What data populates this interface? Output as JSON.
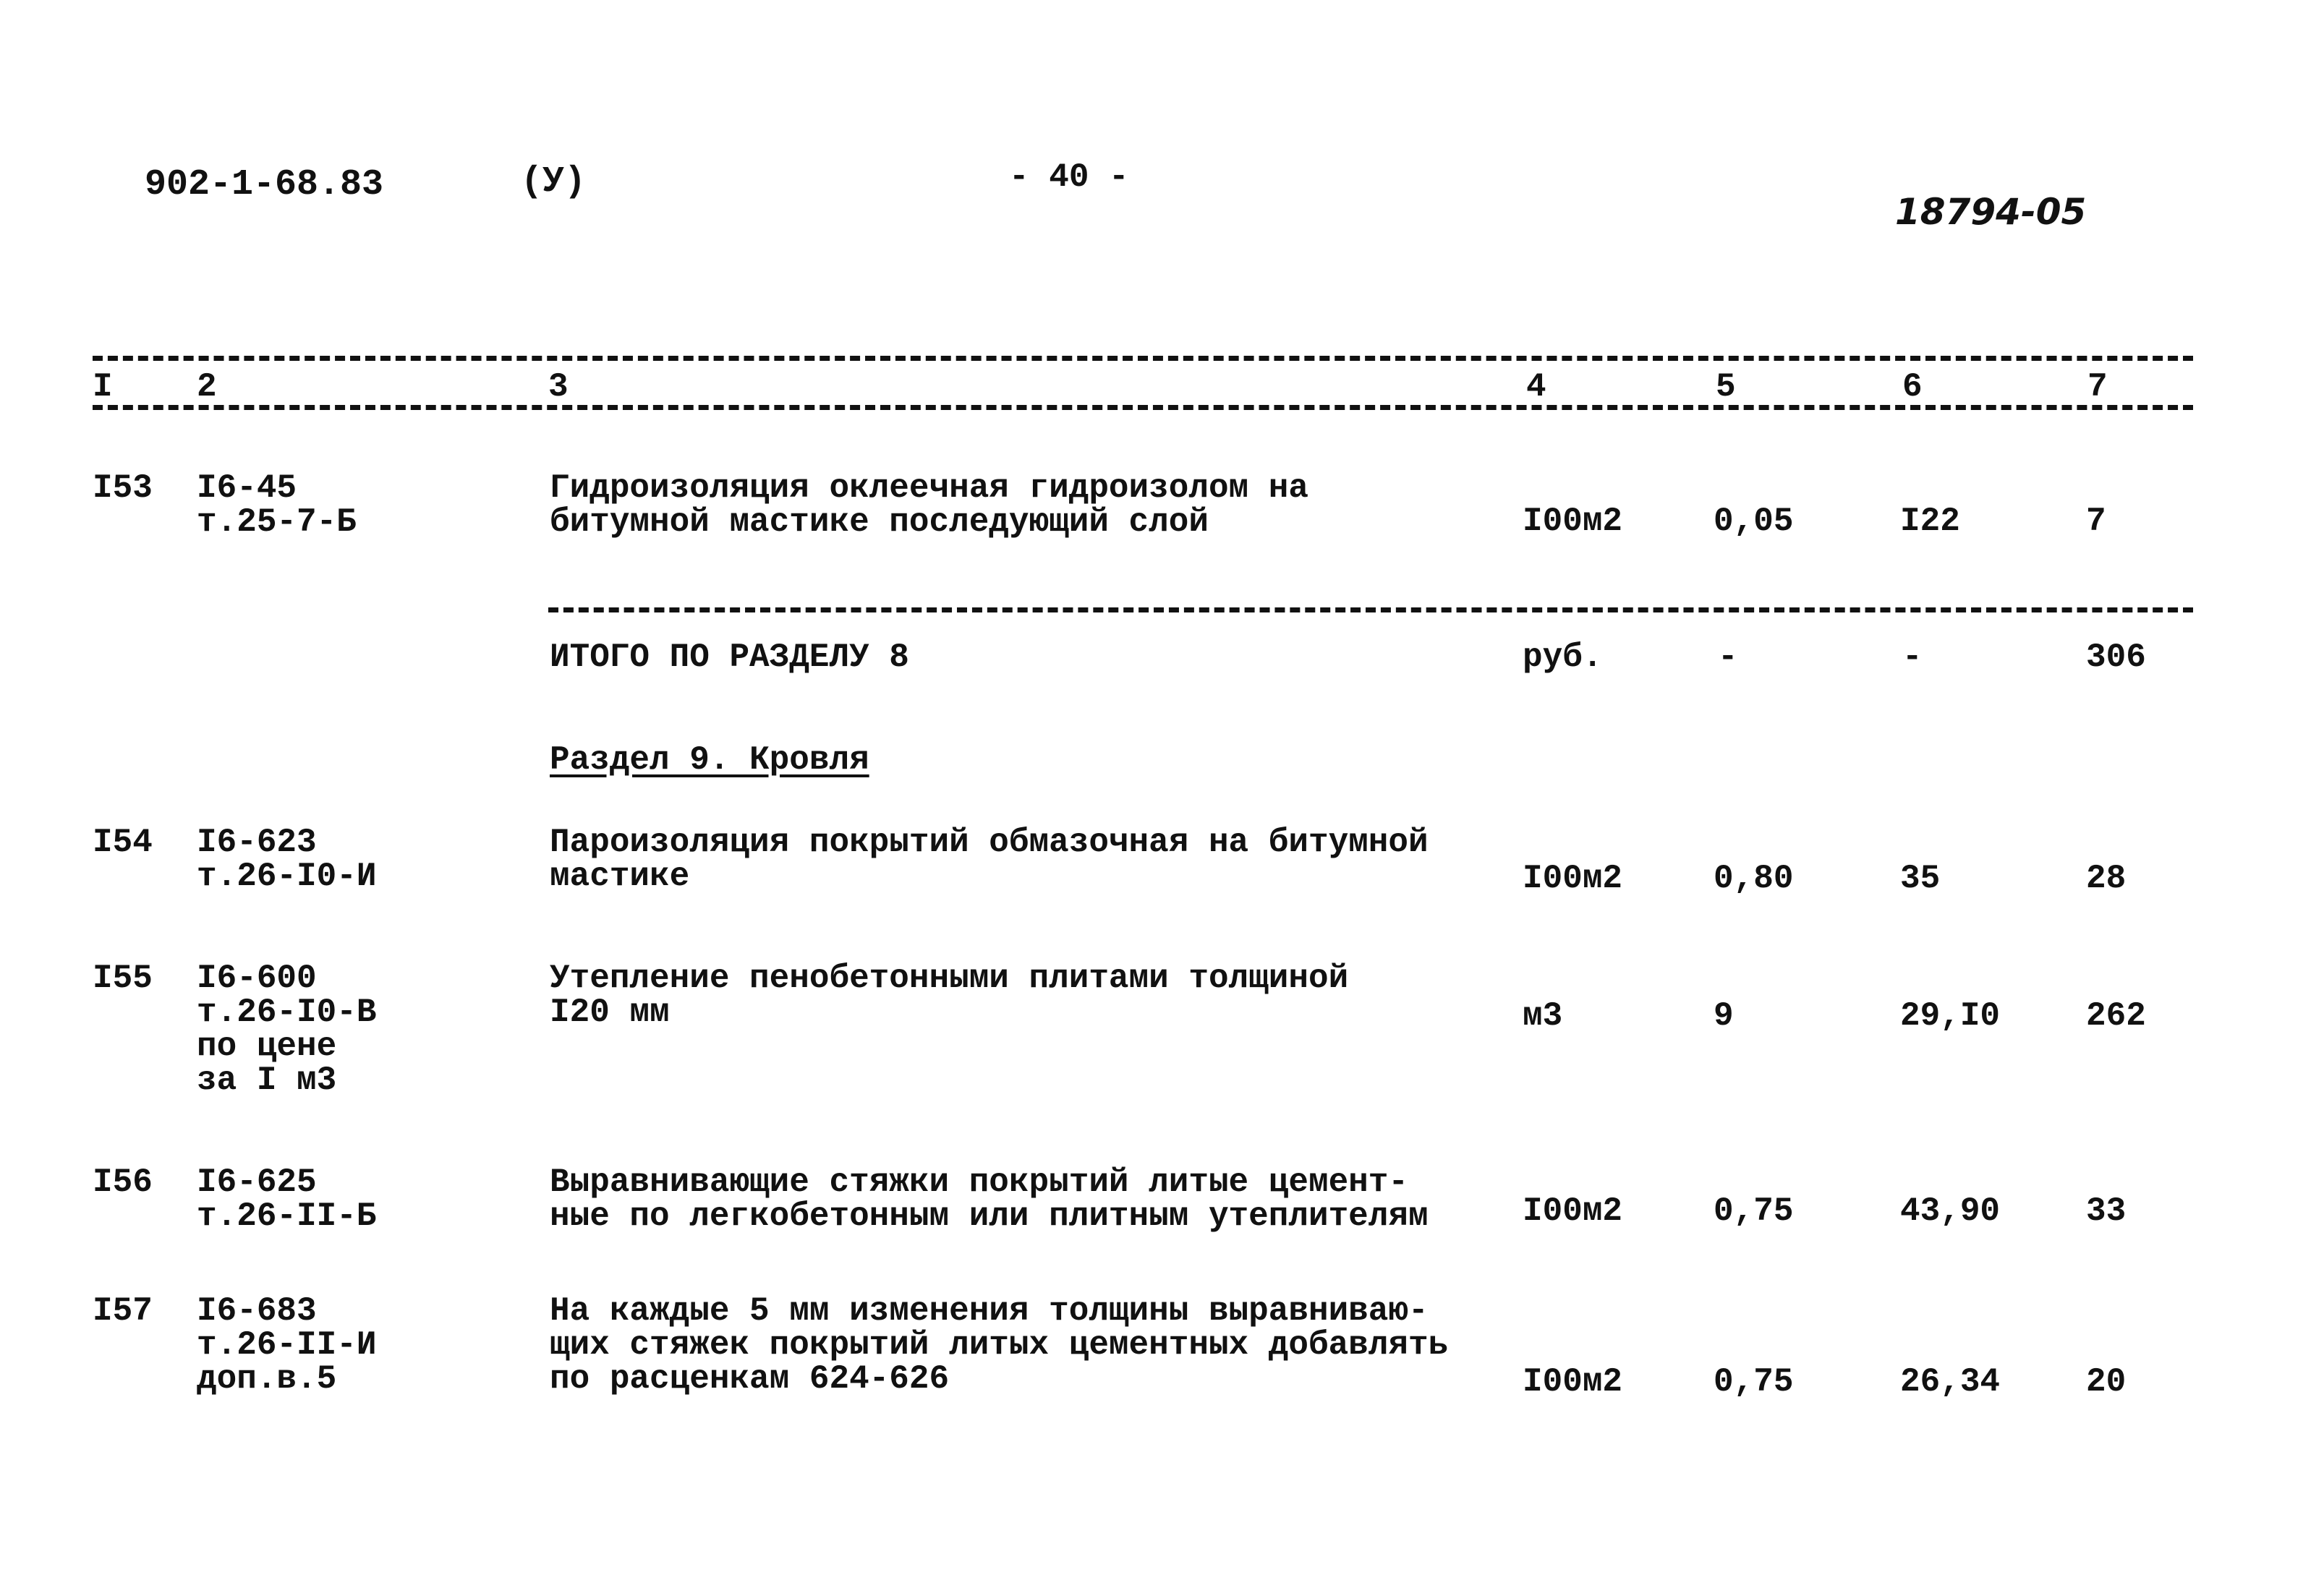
{
  "header": {
    "doc_code": "902-1-68.83",
    "mark": "(У)",
    "page": "- 40 -",
    "inventory": "18794-05"
  },
  "columns": [
    "I",
    "2",
    "3",
    "4",
    "5",
    "6",
    "7"
  ],
  "rows": [
    {
      "no": "I53",
      "code": [
        "I6-45",
        "т.25-7-Б"
      ],
      "desc": [
        "Гидроизоляция оклеечная гидроизолом на",
        "битумной мастике последующий слой"
      ],
      "unit": "I00м2",
      "qty": "0,05",
      "price": "I22",
      "total": "7"
    }
  ],
  "subtotal": {
    "label": "ИТОГО ПО РАЗДЕЛУ 8",
    "unit": "руб.",
    "qty": "-",
    "price": "-",
    "total": "306"
  },
  "section": {
    "title": "Раздел 9. Кровля"
  },
  "rows2": [
    {
      "no": "I54",
      "code": [
        "I6-623",
        "т.26-I0-И"
      ],
      "desc": [
        "Пароизоляция покрытий обмазочная на битумной",
        "мастике"
      ],
      "unit": "I00м2",
      "qty": "0,80",
      "price": "35",
      "total": "28"
    },
    {
      "no": "I55",
      "code": [
        "I6-600",
        "т.26-I0-В",
        "по цене",
        "за I м3"
      ],
      "desc": [
        "Утепление пенобетонными плитами толщиной",
        "I20 мм"
      ],
      "unit": "м3",
      "qty": "9",
      "price": "29,I0",
      "total": "262"
    },
    {
      "no": "I56",
      "code": [
        "I6-625",
        "т.26-II-Б"
      ],
      "desc": [
        "Выравнивающие стяжки покрытий литые цемент-",
        "ные по легкобетонным или плитным утеплителям"
      ],
      "unit": "I00м2",
      "qty": "0,75",
      "price": "43,90",
      "total": "33"
    },
    {
      "no": "I57",
      "code": [
        "I6-683",
        "т.26-II-И",
        "доп.в.5"
      ],
      "desc": [
        "На каждые 5 мм изменения толщины выравниваю-",
        "щих стяжек покрытий литых цементных добавлять",
        "по расценкам 624-626"
      ],
      "unit": "I00м2",
      "qty": "0,75",
      "price": "26,34",
      "total": "20"
    }
  ]
}
